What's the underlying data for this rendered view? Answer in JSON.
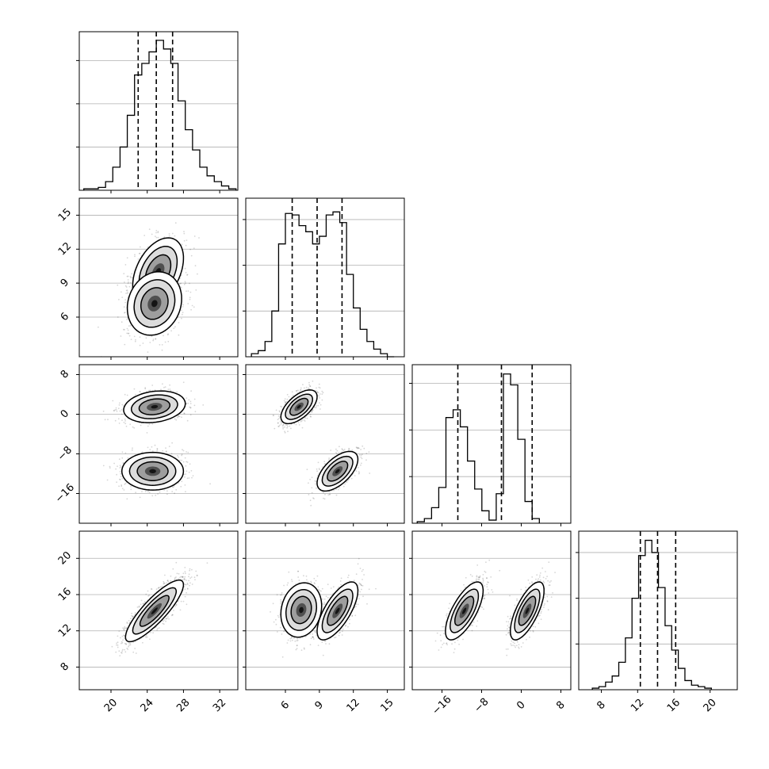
{
  "chart_data": {
    "type": "corner",
    "parameters": [
      {
        "range": [
          16.5,
          34
        ],
        "ticks": [
          20,
          24,
          28,
          32
        ],
        "hist_edges_start": 17,
        "hist_edges_step": 0.8,
        "hist_counts": [
          1,
          1,
          2,
          6,
          16,
          30,
          52,
          80,
          88,
          96,
          104,
          98,
          88,
          62,
          42,
          28,
          16,
          10,
          6,
          3,
          1
        ],
        "hist_ymax": 110,
        "quantiles": [
          23.0,
          25.0,
          26.8
        ]
      },
      {
        "range": [
          2.5,
          16.5
        ],
        "ticks": [
          6,
          9,
          12,
          15
        ],
        "hist_edges_start": 3,
        "hist_edges_step": 0.6,
        "hist_counts": [
          2,
          4,
          10,
          30,
          74,
          94,
          93,
          86,
          82,
          74,
          79,
          93,
          95,
          88,
          54,
          32,
          18,
          10,
          5,
          2,
          0
        ],
        "hist_ymax": 104,
        "quantiles": [
          6.6,
          8.8,
          11.0
        ]
      },
      {
        "range": [
          -22,
          10
        ],
        "ticks": [
          -16,
          -8,
          0,
          8
        ],
        "hist_edges_start": -21,
        "hist_edges_step": 1.45,
        "hist_counts": [
          1,
          3,
          10,
          23,
          68,
          73,
          62,
          40,
          22,
          8,
          2,
          19,
          96,
          89,
          54,
          14,
          3
        ],
        "hist_ymax": 102,
        "quantiles": [
          -12.8,
          -4.0,
          2.2
        ]
      },
      {
        "range": [
          5.5,
          23
        ],
        "ticks": [
          8,
          12,
          16,
          20
        ],
        "hist_edges_start": 7,
        "hist_edges_step": 0.73,
        "hist_counts": [
          1,
          2,
          5,
          9,
          18,
          34,
          60,
          88,
          98,
          90,
          67,
          42,
          26,
          14,
          6,
          3,
          2,
          1
        ],
        "hist_ymax": 104,
        "quantiles": [
          12.3,
          14.2,
          16.2
        ]
      }
    ],
    "pairs": [
      {
        "row": 1,
        "col": 0,
        "clusters": [
          {
            "mean": [
              25.2,
              10.0
            ],
            "sd": [
              1.4,
              1.5
            ],
            "rho": 0.4,
            "weight": 0.5
          },
          {
            "mean": [
              24.8,
              7.2
            ],
            "sd": [
              1.5,
              1.4
            ],
            "rho": 0.15,
            "weight": 0.5
          }
        ]
      },
      {
        "row": 2,
        "col": 0,
        "clusters": [
          {
            "mean": [
              24.8,
              1.5
            ],
            "sd": [
              1.7,
              1.6
            ],
            "rho": 0.2,
            "weight": 0.5
          },
          {
            "mean": [
              24.6,
              -11.5
            ],
            "sd": [
              1.7,
              1.9
            ],
            "rho": 0.0,
            "weight": 0.5
          }
        ]
      },
      {
        "row": 2,
        "col": 1,
        "clusters": [
          {
            "mean": [
              7.2,
              1.5
            ],
            "sd": [
              0.8,
              1.7
            ],
            "rho": 0.6,
            "weight": 0.5
          },
          {
            "mean": [
              10.6,
              -11.5
            ],
            "sd": [
              0.9,
              2.0
            ],
            "rho": 0.6,
            "weight": 0.5
          }
        ]
      },
      {
        "row": 3,
        "col": 0,
        "clusters": [
          {
            "mean": [
              24.8,
              14.2
            ],
            "sd": [
              1.6,
              1.7
            ],
            "rho": 0.85,
            "weight": 1.0
          }
        ]
      },
      {
        "row": 3,
        "col": 1,
        "clusters": [
          {
            "mean": [
              7.4,
              14.3
            ],
            "sd": [
              0.9,
              1.5
            ],
            "rho": 0.15,
            "weight": 0.5
          },
          {
            "mean": [
              10.6,
              14.2
            ],
            "sd": [
              0.9,
              1.6
            ],
            "rho": 0.7,
            "weight": 0.5
          }
        ]
      },
      {
        "row": 3,
        "col": 2,
        "clusters": [
          {
            "mean": [
              -11.5,
              14.2
            ],
            "sd": [
              1.9,
              1.6
            ],
            "rho": 0.7,
            "weight": 0.5
          },
          {
            "mean": [
              1.2,
              14.2
            ],
            "sd": [
              1.7,
              1.6
            ],
            "rho": 0.7,
            "weight": 0.5
          }
        ]
      }
    ],
    "title": "",
    "legend": "none",
    "grid": true,
    "color": "#000000"
  }
}
